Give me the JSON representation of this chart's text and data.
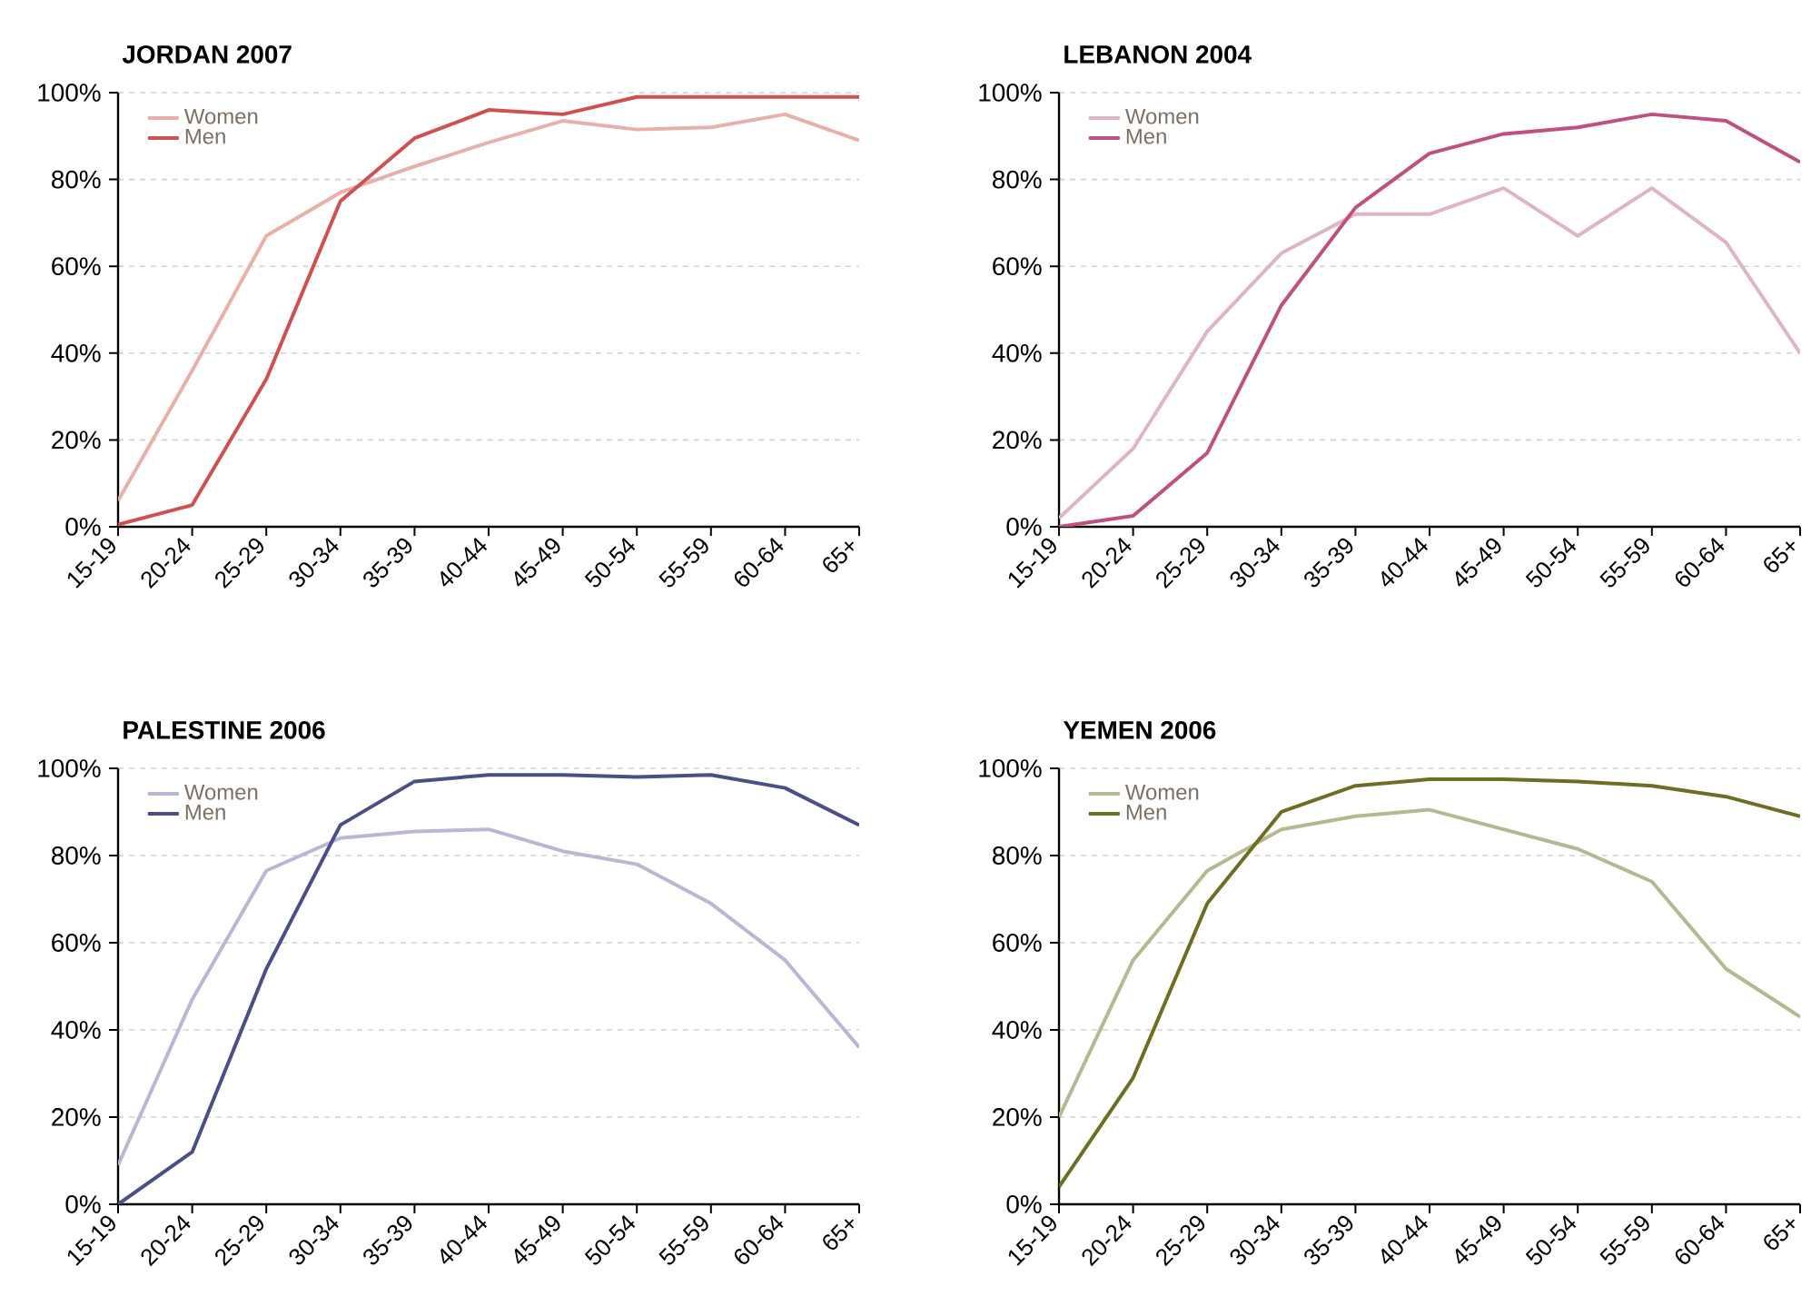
{
  "chart_data": [
    {
      "type": "line",
      "title": "JORDAN 2007",
      "categories": [
        "15-19",
        "20-24",
        "25-29",
        "30-34",
        "35-39",
        "40-44",
        "45-49",
        "50-54",
        "55-59",
        "60-64",
        "65+"
      ],
      "series": [
        {
          "name": "Women",
          "color": "#e8b0a8",
          "values": [
            6,
            36,
            67,
            77,
            83,
            88.5,
            93.5,
            91.5,
            92,
            95,
            89
          ]
        },
        {
          "name": "Men",
          "color": "#d05050",
          "values": [
            0.5,
            5,
            34,
            75,
            89.5,
            96,
            95,
            99,
            99,
            99,
            99
          ]
        }
      ],
      "ylim": [
        0,
        100
      ],
      "yticks": [
        {
          "value": 0,
          "label": "0%"
        },
        {
          "value": 20,
          "label": "20%"
        },
        {
          "value": 40,
          "label": "40%"
        },
        {
          "value": 60,
          "label": "60%"
        },
        {
          "value": 80,
          "label": "80%"
        },
        {
          "value": 100,
          "label": "100%"
        }
      ],
      "grid": "y",
      "legend": "top left"
    },
    {
      "type": "line",
      "title": "LEBANON 2004",
      "categories": [
        "15-19",
        "20-24",
        "25-29",
        "30-34",
        "35-39",
        "40-44",
        "45-49",
        "50-54",
        "55-59",
        "60-64",
        "65+"
      ],
      "series": [
        {
          "name": "Women",
          "color": "#e0b4c4",
          "values": [
            2,
            18,
            45,
            63,
            72,
            72,
            78,
            67,
            78,
            65.5,
            40
          ]
        },
        {
          "name": "Men",
          "color": "#c05080",
          "values": [
            0,
            2.5,
            17,
            51,
            73.5,
            86,
            90.5,
            92,
            95,
            93.5,
            84
          ]
        }
      ],
      "ylim": [
        0,
        100
      ],
      "yticks": [
        {
          "value": 0,
          "label": "0%"
        },
        {
          "value": 20,
          "label": "20%"
        },
        {
          "value": 40,
          "label": "40%"
        },
        {
          "value": 60,
          "label": "60%"
        },
        {
          "value": 80,
          "label": "80%"
        },
        {
          "value": 100,
          "label": "100%"
        }
      ],
      "grid": "y",
      "legend": "top left"
    },
    {
      "type": "line",
      "title": "PALESTINE 2006",
      "categories": [
        "15-19",
        "20-24",
        "25-29",
        "30-34",
        "35-39",
        "40-44",
        "45-49",
        "50-54",
        "55-59",
        "60-64",
        "65+"
      ],
      "series": [
        {
          "name": "Women",
          "color": "#b8b8d4",
          "values": [
            9,
            47,
            76.5,
            84,
            85.5,
            86,
            81,
            78,
            69,
            56,
            36
          ]
        },
        {
          "name": "Men",
          "color": "#4a4f88",
          "values": [
            0,
            12,
            54,
            87,
            97,
            98.5,
            98.5,
            98,
            98.5,
            95.5,
            87
          ]
        }
      ],
      "ylim": [
        0,
        100
      ],
      "yticks": [
        {
          "value": 0,
          "label": "0%"
        },
        {
          "value": 20,
          "label": "20%"
        },
        {
          "value": 40,
          "label": "40%"
        },
        {
          "value": 60,
          "label": "60%"
        },
        {
          "value": 80,
          "label": "80%"
        },
        {
          "value": 100,
          "label": "100%"
        }
      ],
      "grid": "y",
      "legend": "top left"
    },
    {
      "type": "line",
      "title": "YEMEN 2006",
      "categories": [
        "15-19",
        "20-24",
        "25-29",
        "30-34",
        "35-39",
        "40-44",
        "45-49",
        "50-54",
        "55-59",
        "60-64",
        "65+"
      ],
      "series": [
        {
          "name": "Women",
          "color": "#b8b890",
          "values": [
            20,
            56,
            76.5,
            86,
            89,
            90.5,
            86,
            81.5,
            74,
            54,
            43
          ]
        },
        {
          "name": "Men",
          "color": "#6e6e22",
          "values": [
            4,
            29,
            69,
            90,
            96,
            97.5,
            97.5,
            97,
            96,
            93.5,
            89
          ]
        }
      ],
      "ylim": [
        0,
        100
      ],
      "yticks": [
        {
          "value": 0,
          "label": "0%"
        },
        {
          "value": 20,
          "label": "20%"
        },
        {
          "value": 40,
          "label": "40%"
        },
        {
          "value": 60,
          "label": "60%"
        },
        {
          "value": 80,
          "label": "80%"
        },
        {
          "value": 100,
          "label": "100%"
        }
      ],
      "grid": "y",
      "legend": "top left"
    }
  ]
}
